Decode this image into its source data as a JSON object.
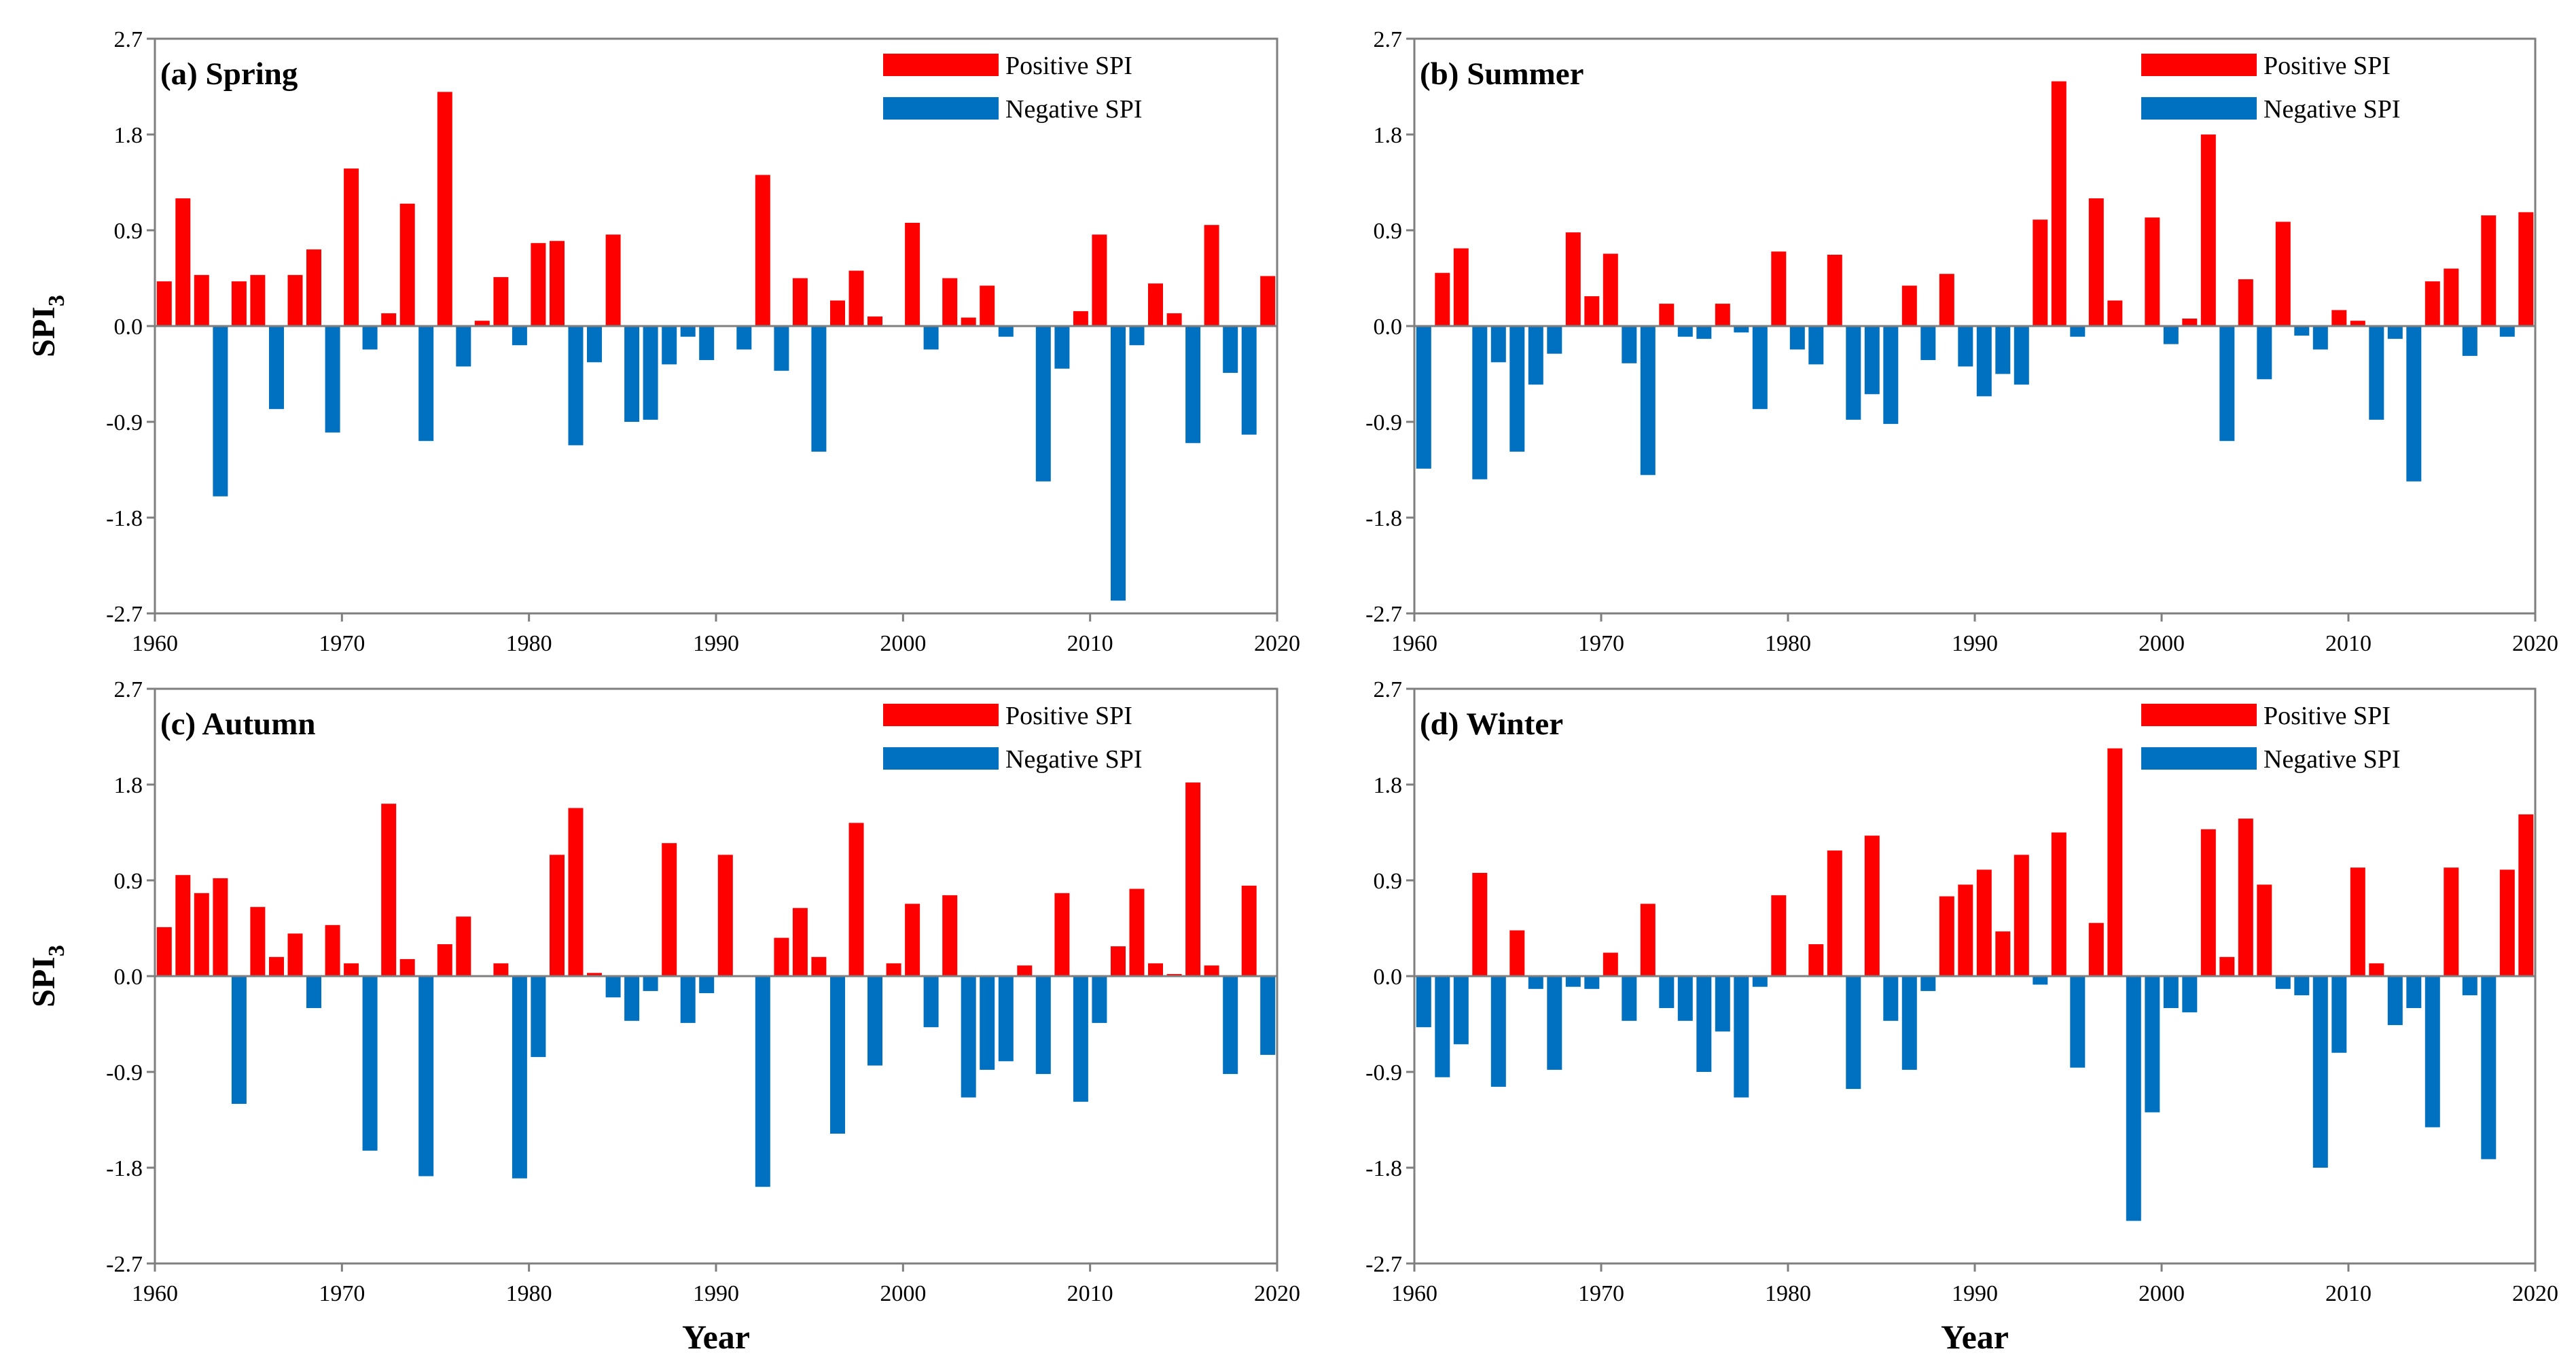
{
  "chart_data": [
    {
      "type": "bar",
      "title": "(a) Spring",
      "xlabel": "",
      "ylabel_main": "SPI",
      "ylabel_sub": "3",
      "xlim": [
        1960,
        2020
      ],
      "ylim": [
        -2.7,
        2.7
      ],
      "x_ticks": [
        1960,
        1970,
        1980,
        1990,
        2000,
        2010,
        2020
      ],
      "y_ticks": [
        2.7,
        1.8,
        0.9,
        0.0,
        -0.9,
        -1.8,
        -2.7
      ],
      "y_tick_labels": [
        "2.7",
        "1.8",
        "0.9",
        "0.0",
        "-0.9",
        "-1.8",
        "-2.7"
      ],
      "legend": {
        "position": "top-right",
        "positive": "Positive SPI",
        "negative": "Negative SPI"
      },
      "colors": {
        "positive": "#ff0000",
        "negative": "#0070c0"
      },
      "years": [
        1960,
        1961,
        1962,
        1963,
        1964,
        1965,
        1966,
        1967,
        1968,
        1969,
        1970,
        1971,
        1972,
        1973,
        1974,
        1975,
        1976,
        1977,
        1978,
        1979,
        1980,
        1981,
        1982,
        1983,
        1984,
        1985,
        1986,
        1987,
        1988,
        1989,
        1990,
        1991,
        1992,
        1993,
        1994,
        1995,
        1996,
        1997,
        1998,
        1999,
        2000,
        2001,
        2002,
        2003,
        2004,
        2005,
        2006,
        2007,
        2008,
        2009,
        2010,
        2011,
        2012,
        2013,
        2014,
        2015,
        2016,
        2017,
        2018,
        2019
      ],
      "values": [
        0.42,
        1.2,
        0.48,
        -1.6,
        0.42,
        0.48,
        -0.78,
        0.48,
        0.72,
        -1.0,
        1.48,
        -0.22,
        0.12,
        1.15,
        -1.08,
        2.2,
        -0.38,
        0.05,
        0.46,
        -0.18,
        0.78,
        0.8,
        -1.12,
        -0.34,
        0.86,
        -0.9,
        -0.88,
        -0.36,
        -0.1,
        -0.32,
        0.0,
        -0.22,
        1.42,
        -0.42,
        0.45,
        -1.18,
        0.24,
        0.52,
        0.09,
        0.0,
        0.97,
        -0.22,
        0.45,
        0.08,
        0.38,
        -0.1,
        0.0,
        -1.46,
        -0.4,
        0.14,
        0.86,
        -2.58,
        -0.18,
        0.4,
        0.12,
        -1.1,
        0.95,
        -0.44,
        -1.02,
        0.47
      ]
    },
    {
      "type": "bar",
      "title": "(b) Summer",
      "xlabel": "",
      "ylabel_main": "",
      "ylabel_sub": "",
      "xlim": [
        1960,
        2020
      ],
      "ylim": [
        -2.7,
        2.7
      ],
      "x_ticks": [
        1960,
        1970,
        1980,
        1990,
        2000,
        2010,
        2020
      ],
      "y_ticks": [
        2.7,
        1.8,
        0.9,
        0.0,
        -0.9,
        -1.8,
        -2.7
      ],
      "y_tick_labels": [
        "2.7",
        "1.8",
        "0.9",
        "0.0",
        "-0.9",
        "-1.8",
        "-2.7"
      ],
      "legend": {
        "position": "top-right",
        "positive": "Positive SPI",
        "negative": "Negative SPI"
      },
      "colors": {
        "positive": "#ff0000",
        "negative": "#0070c0"
      },
      "years": [
        1960,
        1961,
        1962,
        1963,
        1964,
        1965,
        1966,
        1967,
        1968,
        1969,
        1970,
        1971,
        1972,
        1973,
        1974,
        1975,
        1976,
        1977,
        1978,
        1979,
        1980,
        1981,
        1982,
        1983,
        1984,
        1985,
        1986,
        1987,
        1988,
        1989,
        1990,
        1991,
        1992,
        1993,
        1994,
        1995,
        1996,
        1997,
        1998,
        1999,
        2000,
        2001,
        2002,
        2003,
        2004,
        2005,
        2006,
        2007,
        2008,
        2009,
        2010,
        2011,
        2012,
        2013,
        2014,
        2015,
        2016,
        2017,
        2018,
        2019
      ],
      "values": [
        -1.34,
        0.5,
        0.73,
        -1.44,
        -0.34,
        -1.18,
        -0.55,
        -0.26,
        0.88,
        0.28,
        0.68,
        -0.35,
        -1.4,
        0.21,
        -0.1,
        -0.12,
        0.21,
        -0.06,
        -0.78,
        0.7,
        -0.22,
        -0.36,
        0.67,
        -0.88,
        -0.64,
        -0.92,
        0.38,
        -0.32,
        0.49,
        -0.38,
        -0.66,
        -0.45,
        -0.55,
        1.0,
        2.3,
        -0.1,
        1.2,
        0.24,
        0.0,
        1.02,
        -0.17,
        0.07,
        1.8,
        -1.08,
        0.44,
        -0.5,
        0.98,
        -0.09,
        -0.22,
        0.15,
        0.05,
        -0.88,
        -0.12,
        -1.46,
        0.42,
        0.54,
        -0.28,
        1.04,
        -0.1,
        1.07
      ]
    },
    {
      "type": "bar",
      "title": "(c) Autumn",
      "xlabel": "Year",
      "ylabel_main": "SPI",
      "ylabel_sub": "3",
      "xlim": [
        1960,
        2020
      ],
      "ylim": [
        -2.7,
        2.7
      ],
      "x_ticks": [
        1960,
        1970,
        1980,
        1990,
        2000,
        2010,
        2020
      ],
      "y_ticks": [
        2.7,
        1.8,
        0.9,
        0.0,
        -0.9,
        -1.8,
        -2.7
      ],
      "y_tick_labels": [
        "2.7",
        "1.8",
        "0.9",
        "0.0",
        "-0.9",
        "-1.8",
        "-2.7"
      ],
      "legend": {
        "position": "top-right",
        "positive": "Positive SPI",
        "negative": "Negative SPI"
      },
      "colors": {
        "positive": "#ff0000",
        "negative": "#0070c0"
      },
      "years": [
        1960,
        1961,
        1962,
        1963,
        1964,
        1965,
        1966,
        1967,
        1968,
        1969,
        1970,
        1971,
        1972,
        1973,
        1974,
        1975,
        1976,
        1977,
        1978,
        1979,
        1980,
        1981,
        1982,
        1983,
        1984,
        1985,
        1986,
        1987,
        1988,
        1989,
        1990,
        1991,
        1992,
        1993,
        1994,
        1995,
        1996,
        1997,
        1998,
        1999,
        2000,
        2001,
        2002,
        2003,
        2004,
        2005,
        2006,
        2007,
        2008,
        2009,
        2010,
        2011,
        2012,
        2013,
        2014,
        2015,
        2016,
        2017,
        2018,
        2019
      ],
      "values": [
        0.46,
        0.95,
        0.78,
        0.92,
        -1.2,
        0.65,
        0.18,
        0.4,
        -0.3,
        0.48,
        0.12,
        -1.64,
        1.62,
        0.16,
        -1.88,
        0.3,
        0.56,
        0.0,
        0.12,
        -1.9,
        -0.76,
        1.14,
        1.58,
        0.03,
        -0.2,
        -0.42,
        -0.14,
        1.25,
        -0.44,
        -0.16,
        1.14,
        0.0,
        -1.98,
        0.36,
        0.64,
        0.18,
        -1.48,
        1.44,
        -0.84,
        0.12,
        0.68,
        -0.48,
        0.76,
        -1.14,
        -0.88,
        -0.8,
        0.1,
        -0.92,
        0.78,
        -1.18,
        -0.44,
        0.28,
        0.82,
        0.12,
        0.02,
        1.82,
        0.1,
        -0.92,
        0.85,
        -0.74
      ]
    },
    {
      "type": "bar",
      "title": "(d) Winter",
      "xlabel": "Year",
      "ylabel_main": "",
      "ylabel_sub": "",
      "xlim": [
        1960,
        2020
      ],
      "ylim": [
        -2.7,
        2.7
      ],
      "x_ticks": [
        1960,
        1970,
        1980,
        1990,
        2000,
        2010,
        2020
      ],
      "y_ticks": [
        2.7,
        1.8,
        0.9,
        0.0,
        -0.9,
        -1.8,
        -2.7
      ],
      "y_tick_labels": [
        "2.7",
        "1.8",
        "0.9",
        "0.0",
        "-0.9",
        "-1.8",
        "-2.7"
      ],
      "legend": {
        "position": "top-right",
        "positive": "Positive SPI",
        "negative": "Negative SPI"
      },
      "colors": {
        "positive": "#ff0000",
        "negative": "#0070c0"
      },
      "years": [
        1960,
        1961,
        1962,
        1963,
        1964,
        1965,
        1966,
        1967,
        1968,
        1969,
        1970,
        1971,
        1972,
        1973,
        1974,
        1975,
        1976,
        1977,
        1978,
        1979,
        1980,
        1981,
        1982,
        1983,
        1984,
        1985,
        1986,
        1987,
        1988,
        1989,
        1990,
        1991,
        1992,
        1993,
        1994,
        1995,
        1996,
        1997,
        1998,
        1999,
        2000,
        2001,
        2002,
        2003,
        2004,
        2005,
        2006,
        2007,
        2008,
        2009,
        2010,
        2011,
        2012,
        2013,
        2014,
        2015,
        2016,
        2017,
        2018,
        2019
      ],
      "values": [
        -0.48,
        -0.95,
        -0.64,
        0.97,
        -1.04,
        0.43,
        -0.12,
        -0.88,
        -0.1,
        -0.12,
        0.22,
        -0.42,
        0.68,
        -0.3,
        -0.42,
        -0.9,
        -0.52,
        -1.14,
        -0.1,
        0.76,
        0.0,
        0.3,
        1.18,
        -1.06,
        1.32,
        -0.42,
        -0.88,
        -0.14,
        0.75,
        0.86,
        1.0,
        0.42,
        1.14,
        -0.08,
        1.35,
        -0.86,
        0.5,
        2.14,
        -2.3,
        -1.28,
        -0.3,
        -0.34,
        1.38,
        0.18,
        1.48,
        0.86,
        -0.12,
        -0.18,
        -1.8,
        -0.72,
        1.02,
        0.12,
        -0.46,
        -0.3,
        -1.42,
        1.02,
        -0.18,
        -1.72,
        1.0,
        1.52
      ]
    }
  ]
}
